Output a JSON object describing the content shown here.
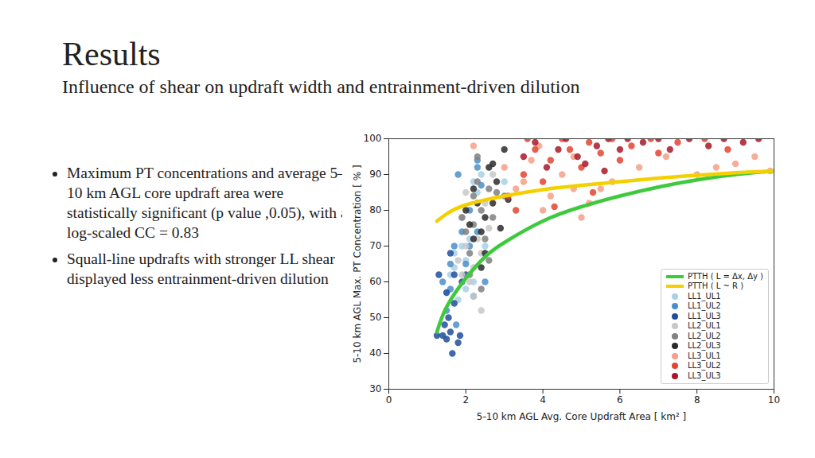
{
  "slide": {
    "title": "Results",
    "subtitle": "Influence of shear on updraft width and entrainment-driven dilution",
    "bullets": [
      "Maximum PT concentrations and average 5–10 km AGL core updraft area were statistically significant (p value ,0.05), with a log-scaled CC = 0.83",
      "Squall-line updrafts with stronger LL shear displayed less entrainment-driven dilution"
    ]
  },
  "chart_data": {
    "type": "scatter",
    "x_label": "5-10 km AGL Avg. Core Updraft Area [ km² ]",
    "y_label": "5-10 km AGL Max. PT Concentration [ % ]",
    "xlim": [
      0,
      10
    ],
    "xticks": [
      0,
      2,
      4,
      6,
      8,
      10
    ],
    "ylim": [
      30,
      100
    ],
    "yticks": [
      30,
      40,
      50,
      60,
      70,
      80,
      90,
      100
    ],
    "grid": false,
    "legend": "lower right",
    "series": [
      {
        "name": "PTTH ( L = Δx, Δy )",
        "type": "line",
        "line_style": "solid",
        "color": "#3ec93e",
        "x": [
          1.25,
          1.5,
          2,
          2.5,
          3,
          4,
          5,
          6,
          7,
          8,
          9,
          10
        ],
        "values": [
          46,
          53,
          61,
          67,
          71,
          77,
          81,
          84,
          86.5,
          88.5,
          90,
          91
        ]
      },
      {
        "name": "PTTH ( L ~ R )",
        "type": "line",
        "line_style": "solid",
        "color": "#f5d000",
        "x": [
          1.25,
          1.5,
          2,
          3,
          4,
          5,
          6,
          7,
          8,
          9,
          10
        ],
        "values": [
          77,
          79,
          81.5,
          84,
          85.8,
          87,
          88,
          89,
          89.8,
          90.5,
          91
        ]
      },
      {
        "name": "LL1_UL1",
        "type": "scatter",
        "marker": "circle",
        "color": "#a8d0e6",
        "x": [
          1.6,
          1.7,
          1.8,
          1.9,
          2.0,
          2.1,
          2.2,
          2.3,
          2.4,
          1.5,
          2.5,
          1.9,
          2.2,
          3.0,
          1.7,
          2.0
        ],
        "values": [
          62,
          68,
          55,
          70,
          66,
          72,
          60,
          85,
          90,
          57,
          70,
          78,
          88,
          88,
          64,
          58
        ]
      },
      {
        "name": "LL1_UL2",
        "type": "scatter",
        "marker": "circle",
        "color": "#4a8fc8",
        "x": [
          1.4,
          1.5,
          1.6,
          1.7,
          1.8,
          1.9,
          2.0,
          2.1,
          2.3,
          2.3,
          2.4,
          1.6,
          2.2,
          2.5,
          1.75,
          2.1,
          2.3
        ],
        "values": [
          60,
          52,
          58,
          70,
          90,
          74,
          65,
          80,
          92,
          94,
          87,
          65,
          56,
          60,
          48,
          70,
          74
        ]
      },
      {
        "name": "LL1_UL3",
        "type": "scatter",
        "marker": "circle",
        "color": "#1f4e9c",
        "x": [
          1.25,
          1.3,
          1.4,
          1.5,
          1.55,
          1.6,
          1.65,
          1.7,
          1.8,
          1.85,
          1.5,
          1.6,
          1.9,
          2.0,
          1.45,
          1.7
        ],
        "values": [
          45,
          62,
          45,
          44,
          50,
          46,
          40,
          54,
          43,
          45,
          57,
          68,
          60,
          62,
          48,
          62
        ]
      },
      {
        "name": "LL2_UL1",
        "type": "scatter",
        "marker": "circle",
        "color": "#c8c8c8",
        "x": [
          1.8,
          1.9,
          2.0,
          2.1,
          2.2,
          2.4,
          2.3,
          2.5,
          2.6,
          2.0,
          2.2,
          1.9,
          2.7,
          2.4
        ],
        "values": [
          66,
          78,
          70,
          60,
          56,
          52,
          72,
          82,
          75,
          85,
          64,
          62,
          90,
          68
        ]
      },
      {
        "name": "LL2_UL2",
        "type": "scatter",
        "marker": "circle",
        "color": "#808080",
        "x": [
          1.9,
          2.0,
          2.1,
          2.2,
          2.3,
          2.4,
          2.5,
          2.6,
          2.7,
          2.8,
          2.3,
          2.1,
          2.4,
          2.6,
          2.2,
          3.0
        ],
        "values": [
          78,
          74,
          68,
          84,
          88,
          80,
          72,
          66,
          78,
          85,
          95,
          62,
          58,
          86,
          76,
          84
        ]
      },
      {
        "name": "LL2_UL3",
        "type": "scatter",
        "marker": "circle",
        "color": "#2b2b2b",
        "x": [
          2.0,
          2.1,
          2.2,
          2.3,
          2.4,
          2.5,
          2.6,
          2.7,
          2.8,
          2.9,
          3.0,
          2.5,
          2.2,
          2.7,
          2.4,
          3.1
        ],
        "values": [
          80,
          76,
          72,
          82,
          74,
          78,
          92,
          93,
          88,
          75,
          97,
          68,
          86,
          82,
          64,
          83
        ]
      },
      {
        "name": "LL3_UL1",
        "type": "scatter",
        "marker": "circle",
        "color": "#f4a086",
        "x": [
          2.2,
          3.0,
          3.3,
          3.5,
          3.7,
          4.0,
          4.2,
          4.5,
          4.8,
          5.0,
          5.2,
          5.5,
          5.8,
          6.5,
          7.2,
          8.0,
          8.5,
          9.0,
          9.5,
          9.9,
          4.8,
          3.9
        ],
        "values": [
          98,
          92,
          86,
          88,
          94,
          80,
          84,
          90,
          95,
          78,
          82,
          86,
          88,
          92,
          95,
          90,
          92,
          93,
          95,
          91,
          86,
          98
        ]
      },
      {
        "name": "LL3_UL2",
        "type": "scatter",
        "marker": "circle",
        "color": "#e3432f",
        "x": [
          3.1,
          3.3,
          3.5,
          3.8,
          4.0,
          4.2,
          4.5,
          4.7,
          5.0,
          5.2,
          5.5,
          5.8,
          6.0,
          6.3,
          6.8,
          7.0,
          7.5,
          8.2,
          8.8,
          4.3,
          5.3,
          3.6
        ],
        "values": [
          84,
          80,
          90,
          97,
          88,
          94,
          100,
          97,
          92,
          99,
          96,
          100,
          94,
          98,
          100,
          96,
          99,
          100,
          97,
          81,
          85,
          100
        ]
      },
      {
        "name": "LL3_UL3",
        "type": "scatter",
        "marker": "circle",
        "color": "#a8172a",
        "x": [
          3.5,
          3.8,
          4.1,
          4.4,
          4.6,
          4.9,
          5.1,
          5.4,
          5.7,
          6.0,
          6.2,
          6.6,
          7.0,
          7.3,
          7.8,
          8.3,
          8.7,
          9.2,
          9.6,
          5.6
        ],
        "values": [
          95,
          99,
          92,
          97,
          100,
          95,
          93,
          98,
          100,
          97,
          100,
          99,
          100,
          97,
          100,
          98,
          100,
          99,
          100,
          91
        ]
      }
    ]
  }
}
